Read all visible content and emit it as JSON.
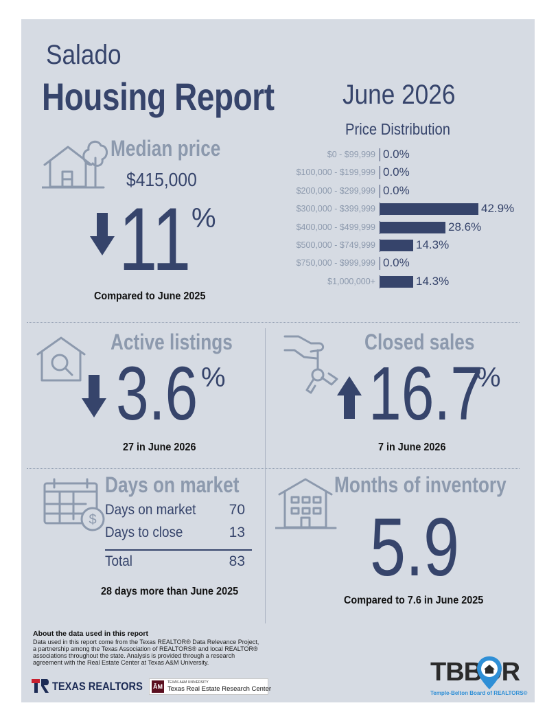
{
  "header": {
    "city": "Salado",
    "title": "Housing Report",
    "period": "June 2026"
  },
  "price_distribution": {
    "title": "Price Distribution",
    "chart_data": {
      "type": "bar",
      "orientation": "horizontal",
      "title": "Price Distribution",
      "categories": [
        "$0 - $99,999",
        "$100,000 - $199,999",
        "$200,000 - $299,999",
        "$300,000 - $399,999",
        "$400,000 - $499,999",
        "$500,000 - $749,999",
        "$750,000 - $999,999",
        "$1,000,000+"
      ],
      "values": [
        0.0,
        0.0,
        0.0,
        42.9,
        28.6,
        14.3,
        0.0,
        14.3
      ],
      "value_labels": [
        "0.0%",
        "0.0%",
        "0.0%",
        "42.9%",
        "28.6%",
        "14.3%",
        "0.0%",
        "14.3%"
      ],
      "unit": "%",
      "xlim": [
        0,
        42.9
      ],
      "grid": false,
      "bar_color": "#36446b"
    }
  },
  "median_price": {
    "title": "Median price",
    "value": "$415,000",
    "change_direction": "down",
    "change_value": "11",
    "change_unit": "%",
    "comparison": "Compared to June 2025",
    "icon": "house-tree-icon"
  },
  "active_listings": {
    "title": "Active listings",
    "change_direction": "down",
    "change_value": "3.6",
    "change_unit": "%",
    "note": "27 in June 2026",
    "icon": "house-search-icon"
  },
  "closed_sales": {
    "title": "Closed sales",
    "change_direction": "up",
    "change_value": "16.7",
    "change_unit": "%",
    "note": "7 in June 2026",
    "icon": "hand-keys-icon"
  },
  "days_on_market": {
    "title": "Days on market",
    "rows": [
      {
        "label": "Days on market",
        "value": "70"
      },
      {
        "label": "Days to close",
        "value": "13"
      }
    ],
    "total": {
      "label": "Total",
      "value": "83"
    },
    "note": "28 days more than June 2025",
    "icon": "calendar-dollar-icon"
  },
  "months_inventory": {
    "title": "Months of inventory",
    "value": "5.9",
    "note": "Compared to 7.6 in June 2025",
    "icon": "apartment-building-icon"
  },
  "about": {
    "title": "About the data used in this report",
    "text": "Data used in this report come from the Texas REALTOR® Data Relevance Project, a partnership among the Texas Association of REALTORS® and local REALTOR® associations throughout the state. Analysis is provided through a research agreement with the Real Estate Center at Texas A&M University."
  },
  "logos": {
    "texas_realtors": "TEXAS REALTORS",
    "tamu_small": "TEXAS A&M UNIVERSITY",
    "tamu_center": "Texas Real Estate Research Center",
    "tbbor": "TBBOR",
    "tbbor_sub": "Temple-Belton Board of REALTORS®"
  },
  "colors": {
    "navy": "#36446b",
    "gray": "#8c99ad",
    "card": "#d6dbe3",
    "accent_blue": "#2f8fd6",
    "realtors_red": "#c8202f"
  }
}
